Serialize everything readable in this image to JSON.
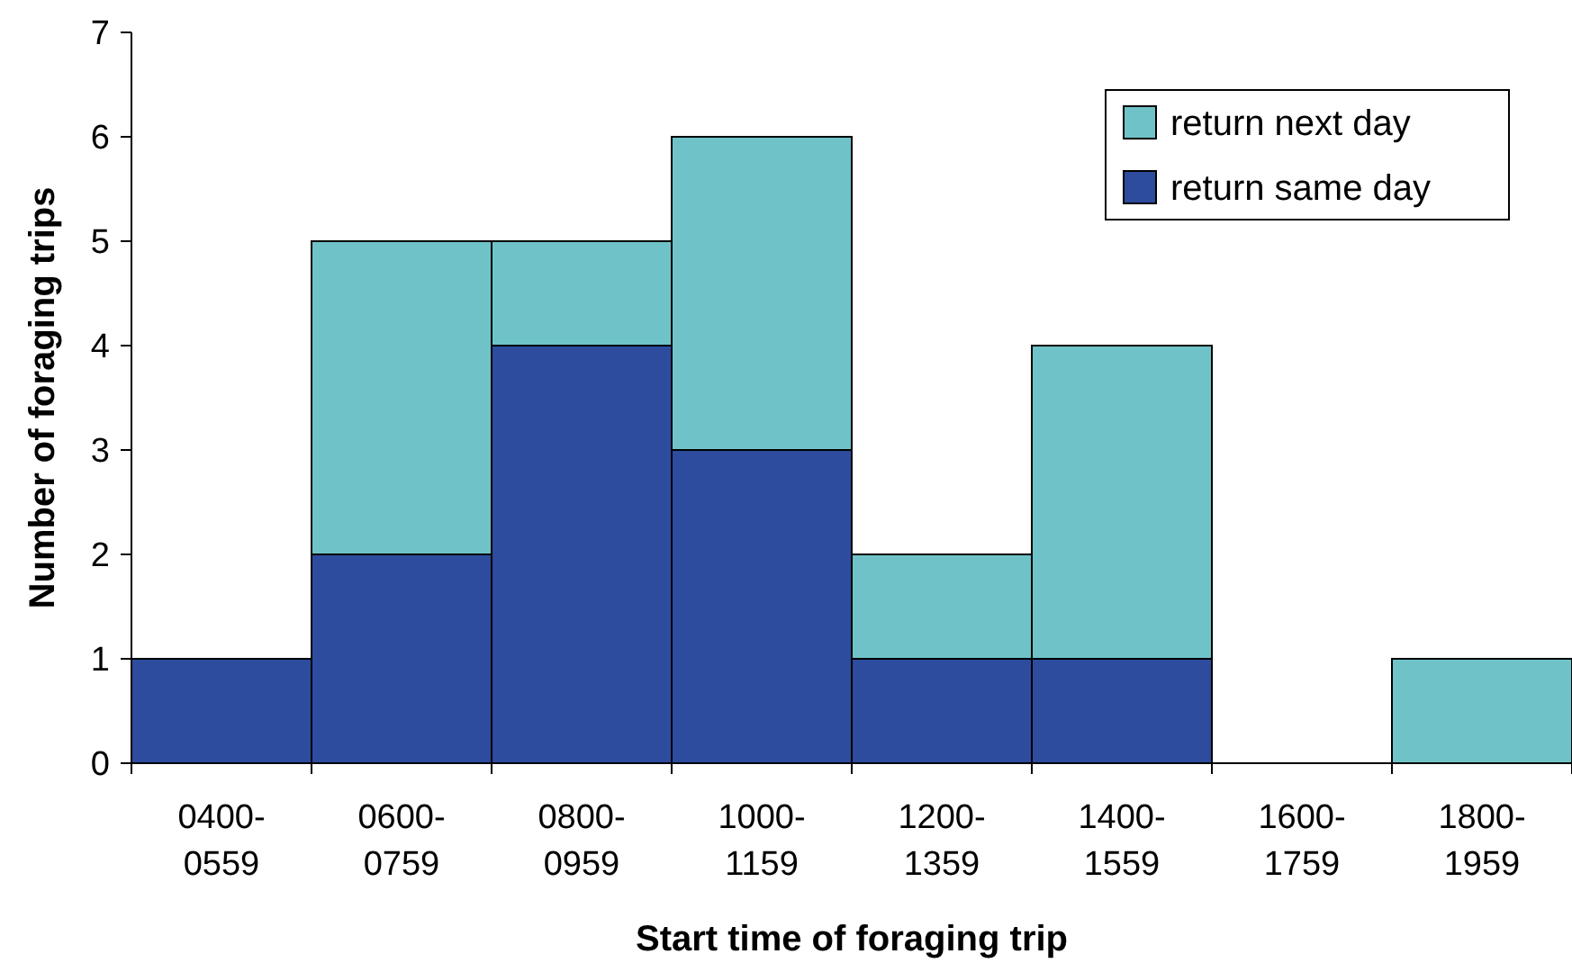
{
  "chart_data": {
    "type": "bar",
    "stacked": true,
    "xlabel": "Start time of foraging trip",
    "ylabel": "Number of foraging trips",
    "categories": [
      "0400-0559",
      "0600-0759",
      "0800-0959",
      "1000-1159",
      "1200-1359",
      "1400-1559",
      "1600-1759",
      "1800-1959"
    ],
    "series": [
      {
        "name": "return same day",
        "color": "#2e4c9e",
        "values": [
          1,
          2,
          4,
          3,
          1,
          1,
          0,
          0
        ]
      },
      {
        "name": "return next day",
        "color": "#6fc3c8",
        "values": [
          0,
          3,
          1,
          3,
          1,
          3,
          0,
          1
        ]
      }
    ],
    "ylim": [
      0,
      7
    ],
    "yticks": [
      0,
      1,
      2,
      3,
      4,
      5,
      6,
      7
    ],
    "grid": false,
    "legend": "top right"
  }
}
